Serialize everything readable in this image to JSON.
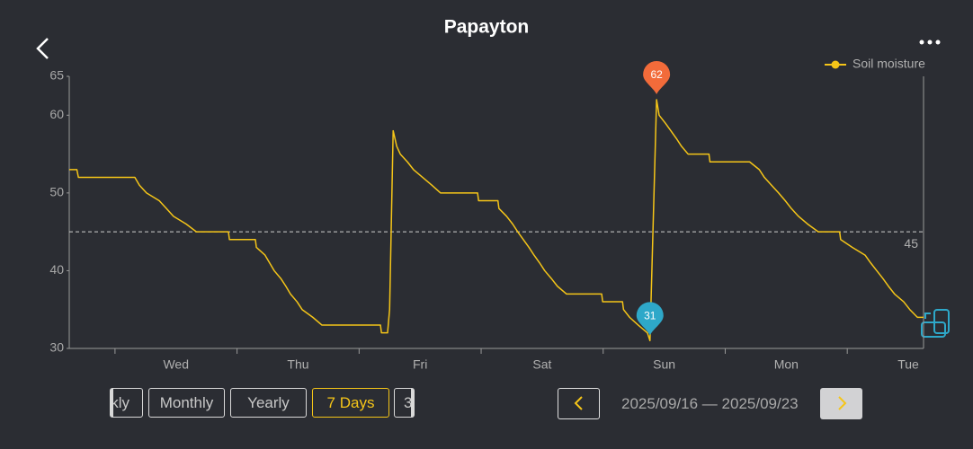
{
  "header": {
    "title": "Papayton"
  },
  "chart_data": {
    "type": "line",
    "step": false,
    "series": [
      {
        "name": "Soil moisture",
        "color": "#f5c518",
        "x": [
          0,
          1.5,
          1.8,
          12.9,
          13.8,
          15.2,
          17.7,
          19.1,
          20.5,
          23,
          25,
          31.3,
          31.5,
          36.6,
          36.8,
          38.5,
          39.4,
          40.3,
          41.6,
          42.6,
          43.5,
          44.8,
          45.8,
          47.9,
          49.7,
          61.2,
          61.4,
          62.6,
          63,
          63.7,
          64.4,
          65.1,
          66.5,
          67.7,
          69.5,
          71.3,
          73,
          80.3,
          80.5,
          84.3,
          84.5,
          86,
          87.2,
          88.2,
          89.3,
          90.4,
          91.4,
          92.5,
          93.5,
          94.8,
          96,
          97.8,
          104.7,
          104.9,
          108.8,
          109,
          110.2,
          111.9,
          113.7,
          114.2,
          115.5,
          116,
          117.2,
          118.3,
          119.4,
          120.4,
          121.7,
          125.8,
          126,
          133.8,
          135.7,
          136.7,
          138.1,
          139.5,
          140.8,
          142,
          143.4,
          145.2,
          147.3,
          151.5,
          151.7,
          154,
          156.5,
          157.6,
          158.8,
          160,
          161.1,
          162.3,
          164.1,
          165.3,
          166.8,
          168
        ],
        "values": [
          53,
          53,
          52,
          52,
          51,
          50,
          49,
          48,
          47,
          46,
          45,
          45,
          44,
          44,
          43,
          42,
          41,
          40,
          39,
          38,
          37,
          36,
          35,
          34,
          33,
          33,
          32,
          32,
          35,
          58,
          56,
          55,
          54,
          53,
          52,
          51,
          50,
          50,
          49,
          49,
          48,
          47,
          46,
          45,
          44,
          43,
          42,
          41,
          40,
          39,
          38,
          37,
          37,
          36,
          36,
          35,
          34,
          33,
          32,
          31,
          62,
          60,
          59,
          58,
          57,
          56,
          55,
          55,
          54,
          54,
          53,
          52,
          51,
          50,
          49,
          48,
          47,
          46,
          45,
          45,
          44,
          43,
          42,
          41,
          40,
          39,
          38,
          37,
          36,
          35,
          34,
          34
        ]
      }
    ],
    "xlim": [
      0,
      168
    ],
    "xticks": [
      {
        "value": 21,
        "label": "Wed"
      },
      {
        "value": 45,
        "label": "Thu"
      },
      {
        "value": 69,
        "label": "Fri"
      },
      {
        "value": 93,
        "label": "Sat"
      },
      {
        "value": 117,
        "label": "Sun"
      },
      {
        "value": 141,
        "label": "Mon"
      },
      {
        "value": 165,
        "label": "Tue"
      }
    ],
    "x_minor_ticks": [
      9,
      33,
      57,
      81,
      105,
      129,
      153
    ],
    "ylim": [
      30,
      65
    ],
    "yticks": [
      30,
      40,
      50,
      60,
      65
    ],
    "threshold": 45,
    "max_marker": {
      "x": 115.5,
      "value": 62,
      "color": "#f26b3a"
    },
    "min_marker": {
      "x": 114.2,
      "value": 31,
      "color": "#2ea8c9"
    },
    "legend": "top-right"
  },
  "controls": {
    "periods": [
      "kly",
      "Monthly",
      "Yearly",
      "7 Days",
      "3"
    ],
    "active": 3,
    "date_range": "2025/09/16 — 2025/09/23"
  }
}
